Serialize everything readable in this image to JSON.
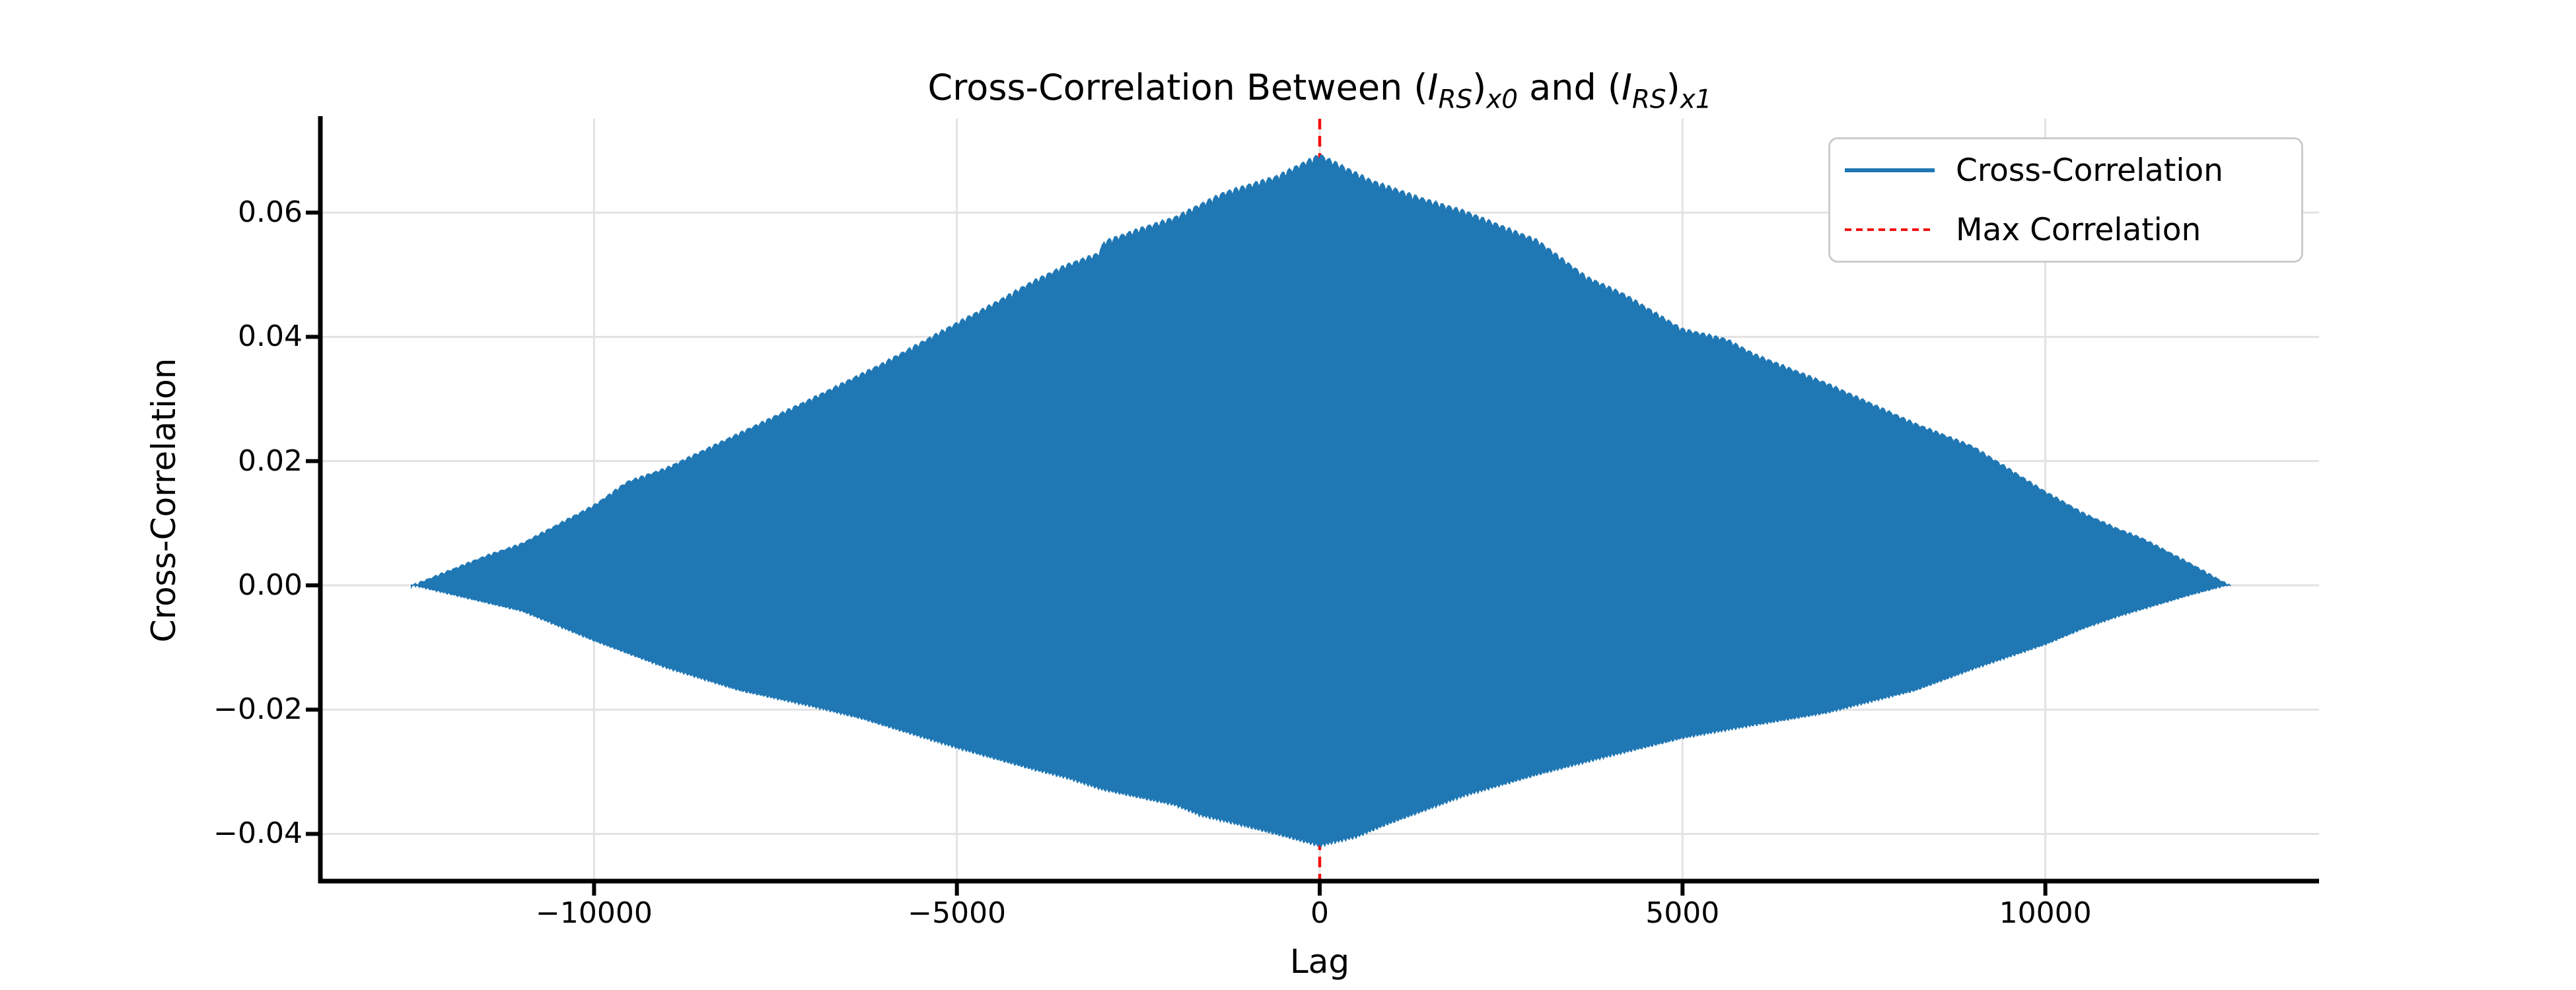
{
  "chart_data": {
    "type": "area",
    "title_plain": "Cross-Correlation Between (I_RS)_x0 and (I_RS)_x1",
    "title_segments": [
      {
        "text": "Cross-Correlation Between (",
        "style": "normal",
        "script": "base"
      },
      {
        "text": "I",
        "style": "italic",
        "script": "base"
      },
      {
        "text": "RS",
        "style": "italic",
        "script": "sub"
      },
      {
        "text": ")",
        "style": "normal",
        "script": "base"
      },
      {
        "text": "x0",
        "style": "italic",
        "script": "sub"
      },
      {
        "text": " and (",
        "style": "normal",
        "script": "base"
      },
      {
        "text": "I",
        "style": "italic",
        "script": "base"
      },
      {
        "text": "RS",
        "style": "italic",
        "script": "sub"
      },
      {
        "text": ")",
        "style": "normal",
        "script": "base"
      },
      {
        "text": "x1",
        "style": "italic",
        "script": "sub"
      }
    ],
    "xlabel": "Lag",
    "ylabel": "Cross-Correlation",
    "xlim": [
      -13772,
      13772
    ],
    "ylim": [
      -0.0476,
      0.0751
    ],
    "xticks": [
      -10000,
      -5000,
      0,
      5000,
      10000
    ],
    "xtick_labels": [
      "−10000",
      "−5000",
      "0",
      "5000",
      "10000"
    ],
    "yticks": [
      0.06,
      0.04,
      0.02,
      0.0,
      -0.02,
      -0.04
    ],
    "ytick_labels": [
      "0.06",
      "0.04",
      "0.02",
      "0.00",
      "−0.02",
      "−0.04"
    ],
    "grid": true,
    "grid_color": "#e2e2e2",
    "background": "#ffffff",
    "area_color": "#1f77b4",
    "spine_color": "#000000",
    "series": {
      "name": "Cross-Correlation",
      "lag_range": [
        -12520,
        12550
      ],
      "peak": {
        "lag": 0,
        "value": 0.0695
      },
      "min": {
        "lag": 0,
        "value": -0.0421
      },
      "oscillation_period_lags": 90,
      "upper_envelope": [
        [
          -12520,
          0.0
        ],
        [
          -11500,
          0.0048
        ],
        [
          -11000,
          0.0068
        ],
        [
          -10000,
          0.013
        ],
        [
          -9540,
          0.0168
        ],
        [
          -9000,
          0.019
        ],
        [
          -8000,
          0.0246
        ],
        [
          -7000,
          0.0302
        ],
        [
          -6000,
          0.036
        ],
        [
          -5000,
          0.0424
        ],
        [
          -4480,
          0.0456
        ],
        [
          -4000,
          0.0488
        ],
        [
          -3500,
          0.0517
        ],
        [
          -3050,
          0.0536
        ],
        [
          -2970,
          0.0555
        ],
        [
          -2500,
          0.0575
        ],
        [
          -2000,
          0.0594
        ],
        [
          -1320,
          0.0634
        ],
        [
          -600,
          0.066
        ],
        [
          0,
          0.0695
        ],
        [
          700,
          0.0654
        ],
        [
          1400,
          0.0625
        ],
        [
          2000,
          0.0604
        ],
        [
          3000,
          0.0557
        ],
        [
          3680,
          0.0498
        ],
        [
          4200,
          0.047
        ],
        [
          5000,
          0.0414
        ],
        [
          5600,
          0.0398
        ],
        [
          6000,
          0.0373
        ],
        [
          7000,
          0.0326
        ],
        [
          8200,
          0.0262
        ],
        [
          9000,
          0.0225
        ],
        [
          10000,
          0.0152
        ],
        [
          10530,
          0.0117
        ],
        [
          11000,
          0.0092
        ],
        [
          11350,
          0.0076
        ],
        [
          12000,
          0.0036
        ],
        [
          12550,
          0.0
        ]
      ],
      "lower_envelope": [
        [
          -12520,
          0.0
        ],
        [
          -11000,
          -0.0042
        ],
        [
          -10000,
          -0.009
        ],
        [
          -9000,
          -0.0134
        ],
        [
          -8000,
          -0.017
        ],
        [
          -7000,
          -0.0196
        ],
        [
          -6300,
          -0.0216
        ],
        [
          -5000,
          -0.0263
        ],
        [
          -4000,
          -0.0296
        ],
        [
          -3500,
          -0.0311
        ],
        [
          -3000,
          -0.033
        ],
        [
          -2000,
          -0.0355
        ],
        [
          -1640,
          -0.0372
        ],
        [
          -1000,
          -0.039
        ],
        [
          -500,
          -0.0405
        ],
        [
          0,
          -0.0421
        ],
        [
          500,
          -0.0407
        ],
        [
          930,
          -0.0386
        ],
        [
          2000,
          -0.034
        ],
        [
          3000,
          -0.0306
        ],
        [
          4000,
          -0.0276
        ],
        [
          5000,
          -0.0247
        ],
        [
          6000,
          -0.0226
        ],
        [
          7000,
          -0.0206
        ],
        [
          8210,
          -0.017
        ],
        [
          9000,
          -0.0136
        ],
        [
          10000,
          -0.0096
        ],
        [
          10530,
          -0.007
        ],
        [
          11000,
          -0.0051
        ],
        [
          12000,
          -0.0016
        ],
        [
          12520,
          0.0
        ]
      ]
    },
    "max_line": {
      "label": "Max Correlation",
      "lag": 0,
      "color": "#f50d0d",
      "style": "dashed"
    },
    "legend": {
      "location": "upper right",
      "entries": [
        {
          "label": "Cross-Correlation",
          "color": "#1f77b4",
          "line_style": "solid"
        },
        {
          "label": "Max Correlation",
          "color": "#f50d0d",
          "line_style": "dashed"
        }
      ]
    }
  }
}
